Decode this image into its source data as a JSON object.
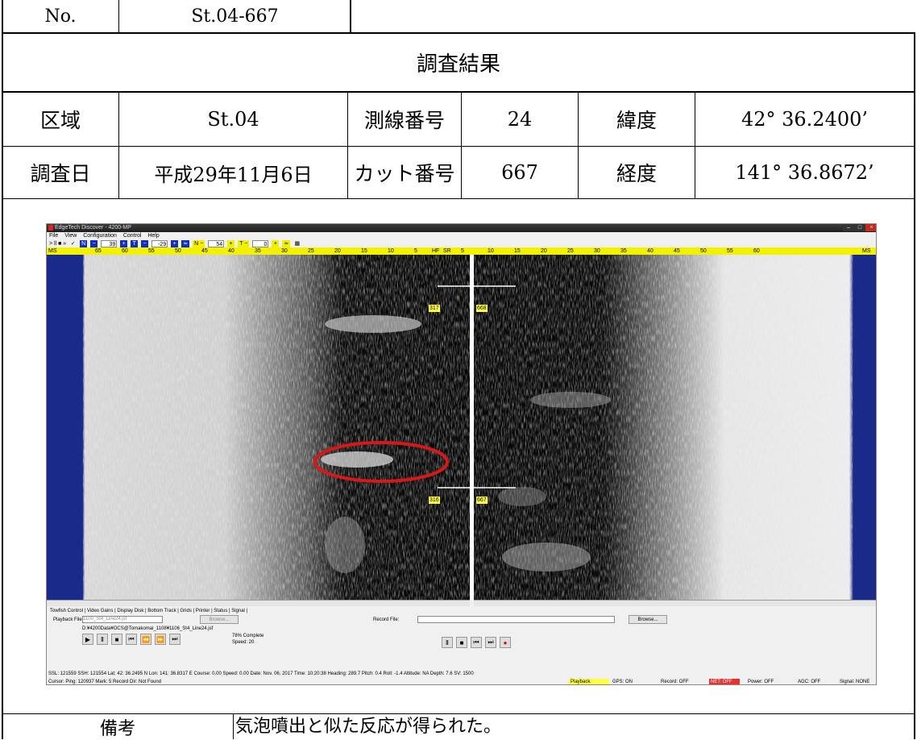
{
  "header": {
    "no_label": "No.",
    "no_value": "St.04-667",
    "title": "調査結果"
  },
  "row1": {
    "area_label": "区域",
    "area_value": "St.04",
    "line_label": "測線番号",
    "line_value": "24",
    "lat_label": "緯度",
    "lat_value": "42° 36.2400’"
  },
  "row2": {
    "date_label": "調査日",
    "date_value": "平成29年11月6日",
    "cut_label": "カット番号",
    "cut_value": "667",
    "lon_label": "経度",
    "lon_value": "141° 36.8672’"
  },
  "footer": {
    "remarks_label": "備考",
    "remarks_value": "気泡噴出と似た反応が得られた。"
  },
  "app": {
    "title": "EdgeTech Discover - 4200-MP",
    "menu": [
      "File",
      "View",
      "Configuration",
      "Control",
      "Help"
    ],
    "toolbar": {
      "play": "> ll ■ »",
      "n_label": "N",
      "n_value": "39",
      "t_label": "T",
      "t_value": "-29",
      "n2_value": "54",
      "t2_value": "0"
    },
    "scale_left": [
      "MS",
      "65",
      "60",
      "55",
      "50",
      "45",
      "40",
      "35",
      "30",
      "25",
      "20",
      "15",
      "10",
      "5",
      "HF"
    ],
    "scale_right": [
      "SR",
      "5",
      "10",
      "15",
      "20",
      "25",
      "30",
      "35",
      "40",
      "45",
      "50",
      "55",
      "60",
      "MS"
    ],
    "markers": {
      "top_left": "317",
      "top_right": "668",
      "bottom_left": "316",
      "bottom_right": "667"
    },
    "tabs": "Towfish Control | Video Gains | Display  Disk  | Bottom Track | Grids | Printer | Status | Signal |",
    "playback_label": "Playback File:",
    "playback_file": "1100_St4_Line24.jsf",
    "browse": "Browse...",
    "playback_path": "D:¥4200Data¥OCS@Tomakomai_1108¥1106_St4_Line24.jsf",
    "progress": "78% Complete",
    "speed": "Speed: 20",
    "record_label": "Record File:",
    "browse2": "Browse...",
    "status1": "SSL: 121559  SSH: 121554  Lat: 42: 36.2495 N  Lon: 141: 36.8317 E  Course: 0.00  Speed: 0.00  Date: Nov. 06, 2017  Time: 10:20:38  Heading: 289.7  Pitch: 0.4  Roll: -1.4  Altitude: NA  Depth: 7.6  SV: 1500",
    "status2": "Cursor: Ping: 120937  Mark: 5     Record Dir: Not Found",
    "playback_state": "Playback",
    "gps": "GPS: ON",
    "record": "Record: OFF",
    "net": "NET: OFF",
    "power": "Power: OFF",
    "agc": "AGC: OFF",
    "signal": "Signal: NONE"
  }
}
